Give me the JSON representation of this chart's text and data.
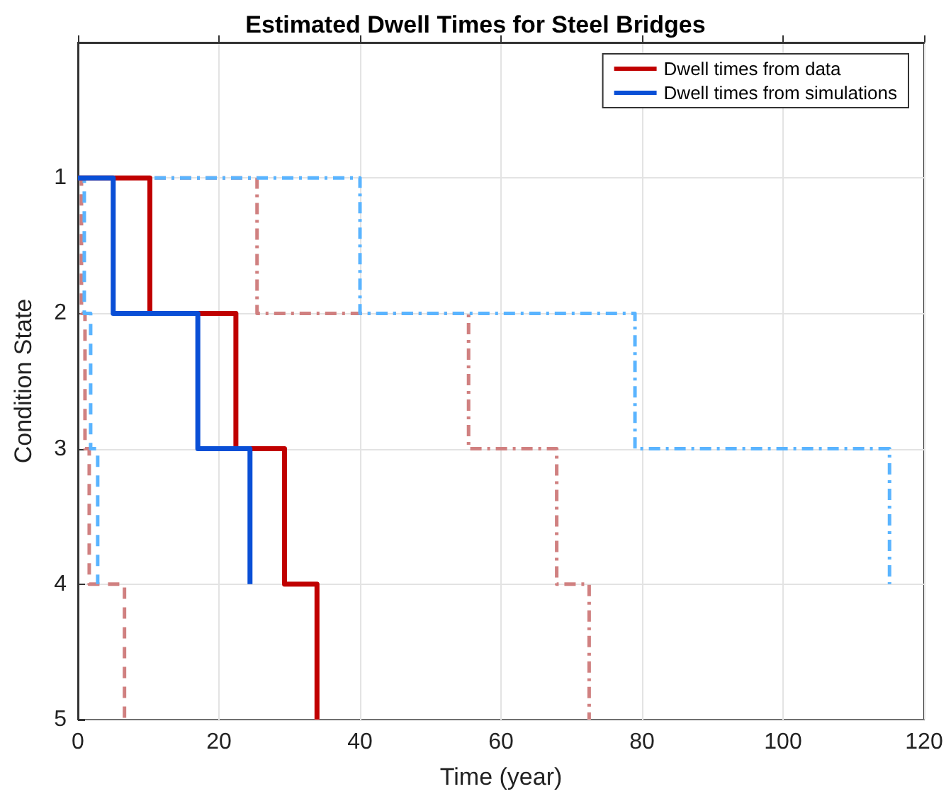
{
  "chart_data": {
    "type": "line",
    "title": "Estimated Dwell Times for Steel Bridges",
    "xlabel": "Time (year)",
    "ylabel": "Condition State",
    "xlim": [
      0,
      120
    ],
    "xticks": [
      0,
      20,
      40,
      60,
      80,
      100,
      120
    ],
    "ylim": [
      5,
      0
    ],
    "yticks": [
      1,
      2,
      3,
      4,
      5
    ],
    "grid": true,
    "legend": "top right",
    "marker": "none",
    "series": [
      {
        "name": "Dwell times from data",
        "color": "#c00000",
        "line_style": "solid",
        "x": [
          0,
          10.2,
          10.2,
          22.4,
          22.4,
          29.3,
          29.3,
          33.9,
          33.9
        ],
        "values": [
          1,
          1,
          2,
          2,
          3,
          3,
          4,
          4,
          5
        ]
      },
      {
        "name": "Dwell times from simulations",
        "color": "#0a4fd6",
        "line_style": "solid",
        "x": [
          0,
          5,
          5,
          17,
          17,
          24.4,
          24.4
        ],
        "values": [
          1,
          1,
          2,
          2,
          3,
          3,
          4
        ]
      },
      {
        "color": "#d08080",
        "line_style": "dashed",
        "x": [
          0,
          0.5,
          0.5,
          1,
          1,
          1.6,
          1.6,
          6.6,
          6.6
        ],
        "values": [
          1,
          1,
          2,
          2,
          3,
          3,
          4,
          4,
          5
        ]
      },
      {
        "color": "#5ab4ff",
        "line_style": "dashed",
        "x": [
          0,
          0.9,
          0.9,
          1.8,
          1.8,
          2.8,
          2.8
        ],
        "values": [
          1,
          1,
          2,
          2,
          3,
          3,
          4
        ]
      },
      {
        "color": "#d08080",
        "line_style": "dashdot",
        "x": [
          0,
          25.4,
          25.4,
          55.4,
          55.4,
          67.9,
          67.9,
          72.5,
          72.5
        ],
        "values": [
          1,
          1,
          2,
          2,
          3,
          3,
          4,
          4,
          5
        ]
      },
      {
        "color": "#5ab4ff",
        "line_style": "dashdot",
        "x": [
          0,
          40,
          40,
          79,
          79,
          115.1,
          115.1
        ],
        "values": [
          1,
          1,
          2,
          2,
          3,
          3,
          4
        ]
      }
    ]
  }
}
